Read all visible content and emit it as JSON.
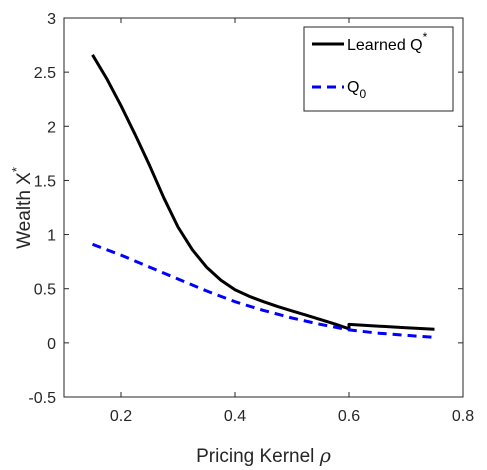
{
  "chart_data": {
    "type": "line",
    "xlabel_text": "Pricing Kernel ",
    "xlabel_symbol": "ρ",
    "ylabel_text": "Wealth X",
    "ylabel_sup": "*",
    "xlim": [
      0.1,
      0.8
    ],
    "ylim": [
      -0.5,
      3
    ],
    "xticks": [
      0.2,
      0.4,
      0.6,
      0.8
    ],
    "xtick_labels": [
      "0.2",
      "0.4",
      "0.6",
      "0.8"
    ],
    "yticks": [
      -0.5,
      0,
      0.5,
      1,
      1.5,
      2,
      2.5,
      3
    ],
    "ytick_labels": [
      "-0.5",
      "0",
      "0.5",
      "1",
      "1.5",
      "2",
      "2.5",
      "3"
    ],
    "grid": false,
    "legend_position": "top-right",
    "series": [
      {
        "name": "Learned Q",
        "name_sup": "*",
        "color": "#000000",
        "dash": "solid",
        "x": [
          0.15,
          0.175,
          0.2,
          0.225,
          0.25,
          0.275,
          0.3,
          0.325,
          0.35,
          0.375,
          0.4,
          0.425,
          0.45,
          0.475,
          0.5,
          0.525,
          0.55,
          0.575,
          0.6,
          0.6,
          0.65,
          0.7,
          0.75
        ],
        "y": [
          2.66,
          2.44,
          2.19,
          1.92,
          1.64,
          1.34,
          1.07,
          0.86,
          0.7,
          0.58,
          0.49,
          0.43,
          0.38,
          0.335,
          0.295,
          0.255,
          0.215,
          0.175,
          0.13,
          0.17,
          0.155,
          0.14,
          0.125
        ]
      },
      {
        "name": "Q",
        "name_sub": "0",
        "color": "#0000ff",
        "dash": "dashed",
        "x": [
          0.15,
          0.2,
          0.25,
          0.3,
          0.35,
          0.4,
          0.45,
          0.5,
          0.55,
          0.6,
          0.65,
          0.7,
          0.75
        ],
        "y": [
          0.91,
          0.81,
          0.7,
          0.59,
          0.48,
          0.38,
          0.3,
          0.23,
          0.17,
          0.12,
          0.09,
          0.07,
          0.05
        ]
      }
    ]
  }
}
